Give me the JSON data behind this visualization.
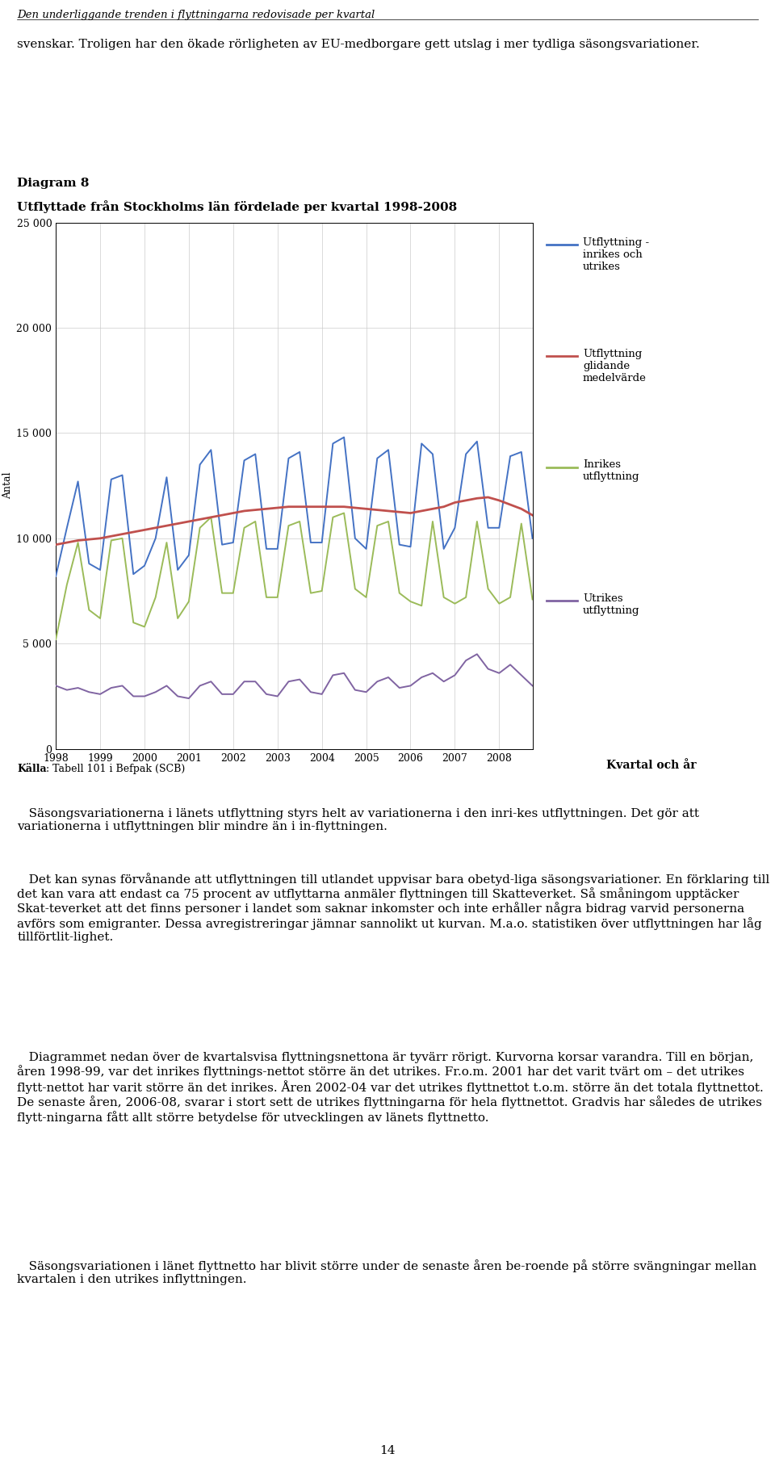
{
  "title_diagram": "Diagram 8",
  "title": "Utflyttade från Stockholms län fördelade per kvartal 1998-2008",
  "ylabel": "Antal",
  "xlabel": "Kvartal och år",
  "source_bold": "Källa",
  "source_rest": ": Tabell 101 i Befpak (SCB)",
  "yticks": [
    0,
    5000,
    10000,
    15000,
    20000,
    25000
  ],
  "colors": {
    "blue": "#4472C4",
    "red": "#C0504D",
    "green": "#9BBB59",
    "purple": "#8064A2"
  },
  "legend_labels": [
    "Utflyttning -\ninrikes och\nutrikes",
    "Utflyttning\nglidande\nmedelvärde",
    "Inrikes\nutflyttning",
    "Utrikes\nutflyttning"
  ],
  "page_header": "Den underliggande trenden i flyttningarna redovisade per kvartal",
  "body_text_top": "svenskar. Troligen har den ökade rörligheten av EU-medborgare gett utslag i mer tydliga säsongsvariationer.",
  "body_text_bottom": "   Säsongsvariationerna i länets utflyttning styrs helt av variationerna i den inri-kes utflyttningen. Det gör att variationerna i utflyttningen blir mindre än i in-flyttningen.\n   Det kan synas förvånande att utflyttningen till utlandet uppvisar bara obetyd-liga säsongsvariationer. En förklaring till det kan vara att endast ca 75 procent av utflyttarna anmäler flyttningen till Skatteverket. Så småningom upptäcker Skat-teverket att det finns personer i landet som saknar inkomster och inte erhåller några bidrag varvid personerna avförs som emigranter. Dessa avregistreringar jämnar sannolikt ut kurvan. M.a.o. statistiken över utflyttningen har låg tillförtlit-lighet.\n   Diagrammet nedan över de kvartalsvisa flyttningsnettona är tyvärr rörigt. Kurvorna korsar varandra. Till en början, åren 1998-99, var det inrikes flyttnings-nettot större än det utrikes. Fr.o.m. 2001 har det varit tvärt om – det utrikes flytt-nettot har varit större än det inrikes. Åren 2002-04 var det utrikes flyttnettot t.o.m. större än det totala flyttnettot. De senaste åren, 2006-08, svarar i stort sett de utrikes flyttningarna för hela flyttnettot. Gradvis har således de utrikes flytt-ningarna fått allt större betydelse för utvecklingen av länets flyttnetto.\n   Säsongsvariationen i länet flyttnetto har blivit större under de senaste åren be-roende på större svängningar mellan kvartalen i den utrikes inflyttningen.",
  "footer_text": "14",
  "blue_data": [
    8200,
    10500,
    12700,
    8800,
    8500,
    12800,
    13000,
    8300,
    8700,
    10000,
    12900,
    8500,
    9200,
    13500,
    14200,
    9700,
    9800,
    13700,
    14000,
    9500,
    9500,
    13800,
    14100,
    9800,
    9800,
    14500,
    14800,
    10000,
    9500,
    13800,
    14200,
    9700,
    9600,
    14500,
    14000,
    9500,
    10500,
    14000,
    14600,
    10500,
    10500,
    13900,
    14100,
    10000
  ],
  "red_data": [
    9700,
    9800,
    9900,
    9950,
    10000,
    10100,
    10200,
    10300,
    10400,
    10500,
    10600,
    10700,
    10800,
    10900,
    11000,
    11100,
    11200,
    11300,
    11350,
    11400,
    11450,
    11500,
    11500,
    11500,
    11500,
    11500,
    11500,
    11450,
    11400,
    11350,
    11300,
    11250,
    11200,
    11300,
    11400,
    11500,
    11700,
    11800,
    11900,
    11950,
    11800,
    11600,
    11400,
    11100
  ],
  "green_data": [
    5200,
    7800,
    9800,
    6600,
    6200,
    9900,
    10000,
    6000,
    5800,
    7200,
    9800,
    6200,
    7000,
    10500,
    11000,
    7400,
    7400,
    10500,
    10800,
    7200,
    7200,
    10600,
    10800,
    7400,
    7500,
    11000,
    11200,
    7600,
    7200,
    10600,
    10800,
    7400,
    7000,
    6800,
    10800,
    7200,
    6900,
    7200,
    10800,
    7600,
    6900,
    7200,
    10700,
    7100
  ],
  "purple_data": [
    3000,
    2800,
    2900,
    2700,
    2600,
    2900,
    3000,
    2500,
    2500,
    2700,
    3000,
    2500,
    2400,
    3000,
    3200,
    2600,
    2600,
    3200,
    3200,
    2600,
    2500,
    3200,
    3300,
    2700,
    2600,
    3500,
    3600,
    2800,
    2700,
    3200,
    3400,
    2900,
    3000,
    3400,
    3600,
    3200,
    3500,
    4200,
    4500,
    3800,
    3600,
    4000,
    3500,
    3000
  ]
}
